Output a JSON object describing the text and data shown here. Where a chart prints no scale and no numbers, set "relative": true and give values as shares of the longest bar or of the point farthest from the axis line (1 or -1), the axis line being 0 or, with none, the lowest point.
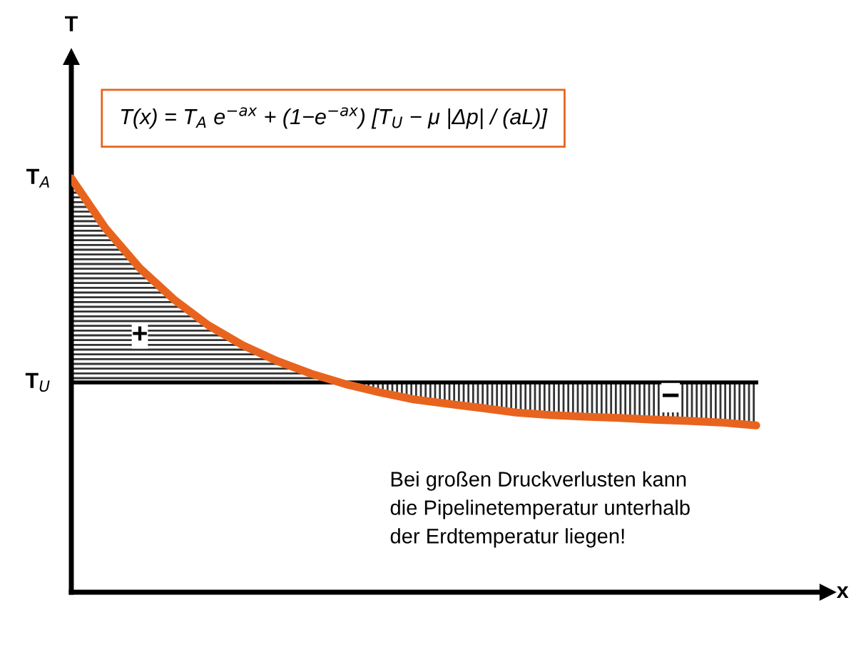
{
  "chart_data": {
    "type": "line",
    "relative": true,
    "categories": [
      null,
      null,
      null,
      null,
      null,
      null,
      null,
      null,
      null,
      null,
      null,
      null,
      null,
      null,
      null,
      null,
      null,
      null,
      null,
      null,
      null
    ],
    "series": [
      {
        "color": "#e8641e",
        "values": [
          1.0,
          0.879,
          0.783,
          0.707,
          0.645,
          0.597,
          0.559,
          0.528,
          0.503,
          0.483,
          0.466,
          0.455,
          0.445,
          0.434,
          0.428,
          0.424,
          0.421,
          0.417,
          0.414,
          0.41,
          0.403
        ]
      }
    ],
    "ref_lines": [
      {
        "axis": "y",
        "value": 0.507,
        "label": "T$_{U}$",
        "color": "#000000"
      }
    ],
    "annotations": [
      "T$_{A}$",
      "T(x) = T$_{A}$ e$^{−ax}$ + (1−e$^{−ax}$) [T$_{U}$ − μ |Δp| / (aL)]",
      "+",
      "−",
      "Bei großen Druckverlusten kann\ndie Pipelinetemperatur unterhalb\nder Erdtemperatur liegen!",
      "T",
      "x"
    ],
    "legend": false,
    "marker": "none",
    "line_style": "solid"
  }
}
